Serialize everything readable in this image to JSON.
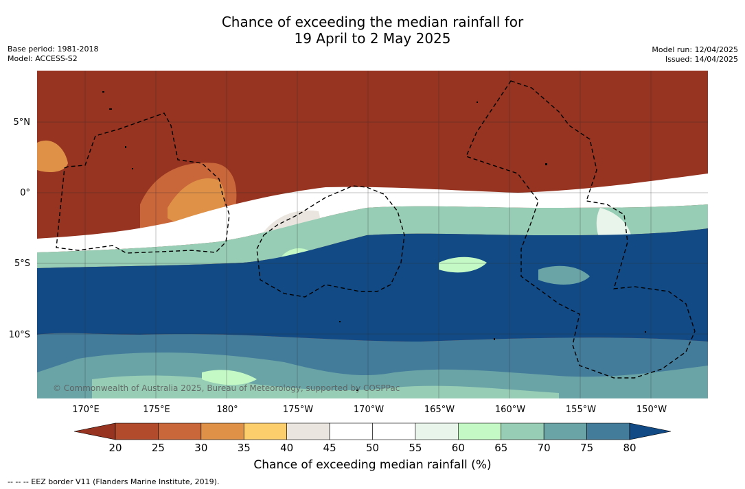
{
  "title_line1": "Chance of exceeding the median rainfall for",
  "title_line2": "19 April to 2 May 2025",
  "base_period": "Base period: 1981-2018",
  "model": "Model: ACCESS-S2",
  "model_run": "Model run: 12/04/2025",
  "issued": "Issued: 14/04/2025",
  "lat_labels": [
    "5°N",
    "0°",
    "5°S",
    "10°S"
  ],
  "lon_labels": [
    "170°E",
    "175°E",
    "180°",
    "175°W",
    "170°W",
    "165°W",
    "160°W",
    "155°W",
    "150°W"
  ],
  "credit": "© Commonwealth of Australia 2025, Bureau of Meteorology, supported by COSPPac",
  "colorbar": {
    "ticks": [
      "20",
      "25",
      "30",
      "35",
      "40",
      "45",
      "50",
      "55",
      "60",
      "65",
      "70",
      "75",
      "80"
    ],
    "colors": [
      "#963421",
      "#b24a2c",
      "#c9663a",
      "#df9148",
      "#fcce6c",
      "#eae6df",
      "#ffffff",
      "#ffffff",
      "#e9f5ea",
      "#c4f9c5",
      "#97cdb5",
      "#6aa4a6",
      "#437b9a",
      "#124a86"
    ],
    "label": "Chance of exceeding median rainfall (%)"
  },
  "legend_note": "--  --  -- EEZ border V11 (Flanders Marine Institute, 2019)."
}
